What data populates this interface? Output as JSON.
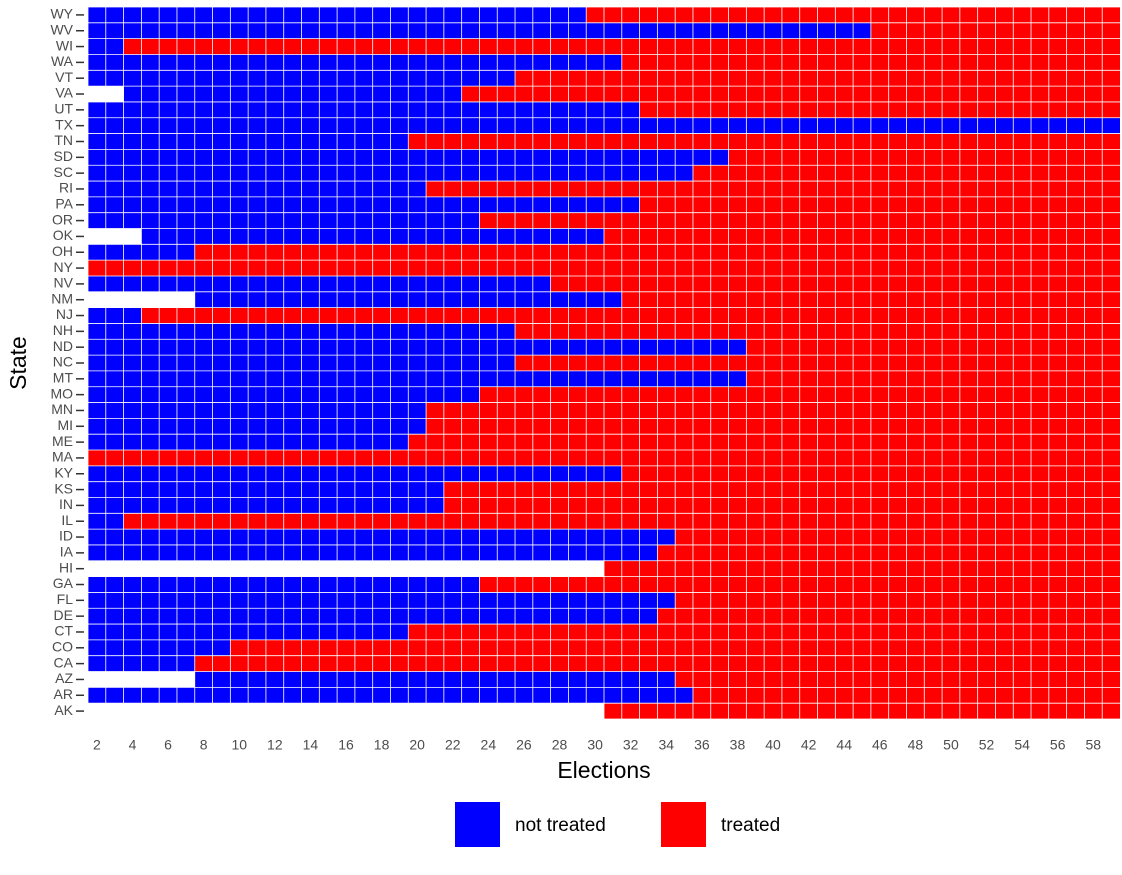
{
  "chart_data": {
    "type": "heatmap",
    "xlabel": "Elections",
    "ylabel": "State",
    "xlim": [
      1.5,
      59.5
    ],
    "xticks": [
      2,
      4,
      6,
      8,
      10,
      12,
      14,
      16,
      18,
      20,
      22,
      24,
      26,
      28,
      30,
      32,
      34,
      36,
      38,
      40,
      42,
      44,
      46,
      48,
      50,
      52,
      54,
      56,
      58
    ],
    "series": [
      {
        "name": "not treated",
        "color": "#0000ff"
      },
      {
        "name": "treated",
        "color": "#ff0000"
      }
    ],
    "legend": "bottom",
    "rows": [
      {
        "state": "WY",
        "runs": [
          {
            "series": 0,
            "from": 2,
            "to": 29
          },
          {
            "series": 1,
            "from": 30,
            "to": 59
          }
        ]
      },
      {
        "state": "WV",
        "runs": [
          {
            "series": 0,
            "from": 2,
            "to": 45
          },
          {
            "series": 1,
            "from": 46,
            "to": 59
          }
        ]
      },
      {
        "state": "WI",
        "runs": [
          {
            "series": 0,
            "from": 2,
            "to": 3
          },
          {
            "series": 1,
            "from": 4,
            "to": 59
          }
        ]
      },
      {
        "state": "WA",
        "runs": [
          {
            "series": 0,
            "from": 2,
            "to": 31
          },
          {
            "series": 1,
            "from": 32,
            "to": 59
          }
        ]
      },
      {
        "state": "VT",
        "runs": [
          {
            "series": 0,
            "from": 2,
            "to": 25
          },
          {
            "series": 1,
            "from": 26,
            "to": 59
          }
        ]
      },
      {
        "state": "VA",
        "runs": [
          {
            "series": 0,
            "from": 4,
            "to": 22
          },
          {
            "series": 1,
            "from": 23,
            "to": 59
          }
        ]
      },
      {
        "state": "UT",
        "runs": [
          {
            "series": 0,
            "from": 2,
            "to": 32
          },
          {
            "series": 1,
            "from": 33,
            "to": 59
          }
        ]
      },
      {
        "state": "TX",
        "runs": [
          {
            "series": 0,
            "from": 2,
            "to": 59
          }
        ]
      },
      {
        "state": "TN",
        "runs": [
          {
            "series": 0,
            "from": 2,
            "to": 19
          },
          {
            "series": 1,
            "from": 20,
            "to": 59
          }
        ]
      },
      {
        "state": "SD",
        "runs": [
          {
            "series": 0,
            "from": 2,
            "to": 37
          },
          {
            "series": 1,
            "from": 38,
            "to": 59
          }
        ]
      },
      {
        "state": "SC",
        "runs": [
          {
            "series": 0,
            "from": 2,
            "to": 35
          },
          {
            "series": 1,
            "from": 36,
            "to": 59
          }
        ]
      },
      {
        "state": "RI",
        "runs": [
          {
            "series": 0,
            "from": 2,
            "to": 20
          },
          {
            "series": 1,
            "from": 21,
            "to": 59
          }
        ]
      },
      {
        "state": "PA",
        "runs": [
          {
            "series": 0,
            "from": 2,
            "to": 32
          },
          {
            "series": 1,
            "from": 33,
            "to": 59
          }
        ]
      },
      {
        "state": "OR",
        "runs": [
          {
            "series": 0,
            "from": 2,
            "to": 23
          },
          {
            "series": 1,
            "from": 24,
            "to": 59
          }
        ]
      },
      {
        "state": "OK",
        "runs": [
          {
            "series": 0,
            "from": 5,
            "to": 30
          },
          {
            "series": 1,
            "from": 31,
            "to": 59
          }
        ]
      },
      {
        "state": "OH",
        "runs": [
          {
            "series": 0,
            "from": 2,
            "to": 7
          },
          {
            "series": 1,
            "from": 8,
            "to": 59
          }
        ]
      },
      {
        "state": "NY",
        "runs": [
          {
            "series": 1,
            "from": 2,
            "to": 59
          }
        ]
      },
      {
        "state": "NV",
        "runs": [
          {
            "series": 0,
            "from": 2,
            "to": 27
          },
          {
            "series": 1,
            "from": 28,
            "to": 59
          }
        ]
      },
      {
        "state": "NM",
        "runs": [
          {
            "series": 0,
            "from": 8,
            "to": 31
          },
          {
            "series": 1,
            "from": 32,
            "to": 59
          }
        ]
      },
      {
        "state": "NJ",
        "runs": [
          {
            "series": 0,
            "from": 2,
            "to": 4
          },
          {
            "series": 1,
            "from": 5,
            "to": 59
          }
        ]
      },
      {
        "state": "NH",
        "runs": [
          {
            "series": 0,
            "from": 2,
            "to": 25
          },
          {
            "series": 1,
            "from": 26,
            "to": 59
          }
        ]
      },
      {
        "state": "ND",
        "runs": [
          {
            "series": 0,
            "from": 2,
            "to": 38
          },
          {
            "series": 1,
            "from": 39,
            "to": 59
          }
        ]
      },
      {
        "state": "NC",
        "runs": [
          {
            "series": 0,
            "from": 2,
            "to": 25
          },
          {
            "series": 1,
            "from": 26,
            "to": 59
          }
        ]
      },
      {
        "state": "MT",
        "runs": [
          {
            "series": 0,
            "from": 2,
            "to": 38
          },
          {
            "series": 1,
            "from": 39,
            "to": 59
          }
        ]
      },
      {
        "state": "MO",
        "runs": [
          {
            "series": 0,
            "from": 2,
            "to": 23
          },
          {
            "series": 1,
            "from": 24,
            "to": 59
          }
        ]
      },
      {
        "state": "MN",
        "runs": [
          {
            "series": 0,
            "from": 2,
            "to": 20
          },
          {
            "series": 1,
            "from": 21,
            "to": 59
          }
        ]
      },
      {
        "state": "MI",
        "runs": [
          {
            "series": 0,
            "from": 2,
            "to": 20
          },
          {
            "series": 1,
            "from": 21,
            "to": 59
          }
        ]
      },
      {
        "state": "ME",
        "runs": [
          {
            "series": 0,
            "from": 2,
            "to": 19
          },
          {
            "series": 1,
            "from": 20,
            "to": 59
          }
        ]
      },
      {
        "state": "MA",
        "runs": [
          {
            "series": 1,
            "from": 2,
            "to": 59
          }
        ]
      },
      {
        "state": "KY",
        "runs": [
          {
            "series": 0,
            "from": 2,
            "to": 31
          },
          {
            "series": 1,
            "from": 32,
            "to": 59
          }
        ]
      },
      {
        "state": "KS",
        "runs": [
          {
            "series": 0,
            "from": 2,
            "to": 21
          },
          {
            "series": 1,
            "from": 22,
            "to": 59
          }
        ]
      },
      {
        "state": "IN",
        "runs": [
          {
            "series": 0,
            "from": 2,
            "to": 21
          },
          {
            "series": 1,
            "from": 22,
            "to": 59
          }
        ]
      },
      {
        "state": "IL",
        "runs": [
          {
            "series": 0,
            "from": 2,
            "to": 3
          },
          {
            "series": 1,
            "from": 4,
            "to": 59
          }
        ]
      },
      {
        "state": "ID",
        "runs": [
          {
            "series": 0,
            "from": 2,
            "to": 34
          },
          {
            "series": 1,
            "from": 35,
            "to": 59
          }
        ]
      },
      {
        "state": "IA",
        "runs": [
          {
            "series": 0,
            "from": 2,
            "to": 33
          },
          {
            "series": 1,
            "from": 34,
            "to": 59
          }
        ]
      },
      {
        "state": "HI",
        "runs": [
          {
            "series": 1,
            "from": 31,
            "to": 59
          }
        ]
      },
      {
        "state": "GA",
        "runs": [
          {
            "series": 0,
            "from": 2,
            "to": 23
          },
          {
            "series": 1,
            "from": 24,
            "to": 59
          }
        ]
      },
      {
        "state": "FL",
        "runs": [
          {
            "series": 0,
            "from": 2,
            "to": 34
          },
          {
            "series": 1,
            "from": 35,
            "to": 59
          }
        ]
      },
      {
        "state": "DE",
        "runs": [
          {
            "series": 0,
            "from": 2,
            "to": 33
          },
          {
            "series": 1,
            "from": 34,
            "to": 59
          }
        ]
      },
      {
        "state": "CT",
        "runs": [
          {
            "series": 0,
            "from": 2,
            "to": 19
          },
          {
            "series": 1,
            "from": 20,
            "to": 59
          }
        ]
      },
      {
        "state": "CO",
        "runs": [
          {
            "series": 0,
            "from": 2,
            "to": 9
          },
          {
            "series": 1,
            "from": 10,
            "to": 59
          }
        ]
      },
      {
        "state": "CA",
        "runs": [
          {
            "series": 0,
            "from": 2,
            "to": 7
          },
          {
            "series": 1,
            "from": 8,
            "to": 59
          }
        ]
      },
      {
        "state": "AZ",
        "runs": [
          {
            "series": 0,
            "from": 8,
            "to": 34
          },
          {
            "series": 1,
            "from": 35,
            "to": 59
          }
        ]
      },
      {
        "state": "AR",
        "runs": [
          {
            "series": 0,
            "from": 2,
            "to": 35
          },
          {
            "series": 1,
            "from": 36,
            "to": 59
          }
        ]
      },
      {
        "state": "AK",
        "runs": [
          {
            "series": 1,
            "from": 31,
            "to": 59
          }
        ]
      }
    ]
  }
}
